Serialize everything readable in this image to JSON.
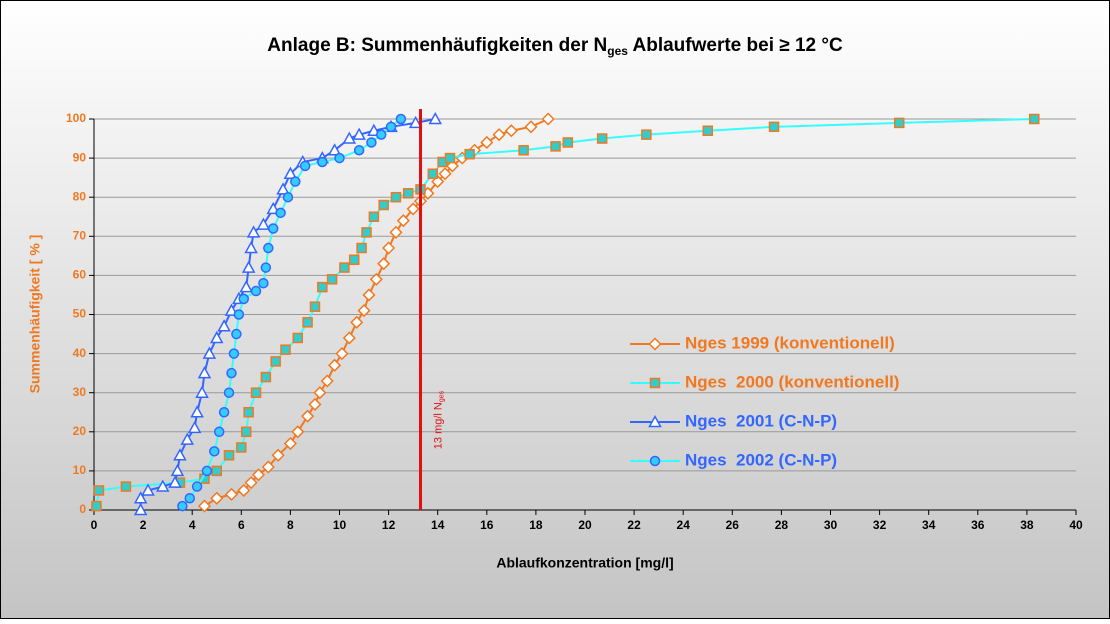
{
  "chart_data": {
    "type": "line",
    "title": {
      "main": "Anlage B: Summenhäufigkeiten der N",
      "subscript": "ges",
      "rest": " Ablaufwerte bei ≥ 12 °C"
    },
    "x_label": "Ablaufkonzentration [mg/l]",
    "y_label": "Summenhäufigkeit [ % ]",
    "xlim": [
      0,
      40
    ],
    "ylim": [
      0,
      100
    ],
    "xticks": [
      0,
      2,
      4,
      6,
      8,
      10,
      12,
      14,
      16,
      18,
      20,
      22,
      24,
      26,
      28,
      30,
      32,
      34,
      36,
      38,
      40
    ],
    "yticks": [
      0,
      10,
      20,
      30,
      40,
      50,
      60,
      70,
      80,
      90,
      100
    ],
    "grid": true,
    "threshold": {
      "x": 13.3,
      "label": "13 mg/l N",
      "subscript": "ges",
      "color": "#e01010"
    },
    "series": [
      {
        "name": "Nges 1999 (konventionell)",
        "color": "#f07820",
        "marker": "diamond",
        "marker_fill": "#ffffff",
        "marker_stroke": "#f07820",
        "label_color": "#f07820",
        "x": [
          4.5,
          5,
          5.6,
          6.1,
          6.4,
          6.7,
          7.1,
          7.5,
          8,
          8.3,
          8.7,
          9,
          9.2,
          9.5,
          9.8,
          10.1,
          10.4,
          10.7,
          11,
          11.2,
          11.5,
          11.8,
          12,
          12.3,
          12.6,
          13,
          13.3,
          13.6,
          14,
          14.3,
          14.6,
          15,
          15.5,
          16,
          16.5,
          17,
          17.8,
          18.5
        ],
        "values": [
          1,
          3,
          4,
          5,
          7,
          9,
          11,
          14,
          17,
          20,
          24,
          27,
          30,
          33,
          37,
          40,
          44,
          48,
          51,
          55,
          59,
          63,
          67,
          71,
          74,
          77,
          79,
          81,
          84,
          86,
          88,
          90,
          92,
          94,
          96,
          97,
          98,
          100
        ]
      },
      {
        "name": "Nges  2000 (konventionell)",
        "color": "#33ffff",
        "marker": "square",
        "marker_fill": "#33cccc",
        "marker_stroke": "#f07820",
        "label_color": "#f07820",
        "x": [
          0.1,
          0.2,
          1.3,
          3.5,
          4.5,
          5,
          5.5,
          6,
          6.2,
          6.3,
          6.6,
          7,
          7.4,
          7.8,
          8.3,
          8.7,
          9,
          9.3,
          9.7,
          10.2,
          10.6,
          10.9,
          11.1,
          11.4,
          11.8,
          12.3,
          12.8,
          13.3,
          13.8,
          14.2,
          14.5,
          15.3,
          17.5,
          18.8,
          19.3,
          20.7,
          22.5,
          25,
          27.7,
          32.8,
          38.3
        ],
        "values": [
          1,
          5,
          6,
          7,
          8,
          10,
          14,
          16,
          20,
          25,
          30,
          34,
          38,
          41,
          44,
          48,
          52,
          57,
          59,
          62,
          64,
          67,
          71,
          75,
          78,
          80,
          81,
          82,
          86,
          89,
          90,
          91,
          92,
          93,
          94,
          95,
          96,
          97,
          98,
          99,
          100
        ]
      },
      {
        "name": "Nges  2001 (C-N-P)",
        "color": "#3366ff",
        "marker": "triangle",
        "marker_fill": "#ffffff",
        "marker_stroke": "#3366ff",
        "label_color": "#3366ff",
        "x": [
          1.9,
          1.9,
          2.2,
          2.8,
          3.3,
          3.4,
          3.5,
          3.8,
          4.1,
          4.2,
          4.4,
          4.5,
          4.7,
          5,
          5.3,
          5.6,
          5.9,
          6.2,
          6.3,
          6.4,
          6.5,
          6.9,
          7.3,
          7.7,
          8,
          8.5,
          9.3,
          9.8,
          10.4,
          10.8,
          11.4,
          12.1,
          13.1,
          13.9
        ],
        "values": [
          0,
          3,
          5,
          6,
          7,
          10,
          14,
          18,
          21,
          25,
          30,
          35,
          40,
          44,
          47,
          51,
          54,
          57,
          62,
          67,
          71,
          73,
          77,
          82,
          86,
          89,
          90,
          92,
          95,
          96,
          97,
          98,
          99,
          100
        ]
      },
      {
        "name": "Nges  2002 (C-N-P)",
        "color": "#33ffff",
        "marker": "circle",
        "marker_fill": "#33ccff",
        "marker_stroke": "#3366ff",
        "label_color": "#3366ff",
        "x": [
          3.6,
          3.9,
          4.2,
          4.6,
          4.9,
          5.1,
          5.3,
          5.5,
          5.6,
          5.7,
          5.8,
          5.9,
          6.1,
          6.6,
          6.9,
          7,
          7.1,
          7.3,
          7.6,
          7.9,
          8.2,
          8.6,
          9.3,
          10,
          10.8,
          11.3,
          11.7,
          12.1,
          12.5
        ],
        "values": [
          1,
          3,
          6,
          10,
          15,
          20,
          25,
          30,
          35,
          40,
          45,
          50,
          54,
          56,
          58,
          62,
          67,
          72,
          76,
          80,
          84,
          88,
          89,
          90,
          92,
          94,
          96,
          98,
          100
        ]
      }
    ]
  }
}
